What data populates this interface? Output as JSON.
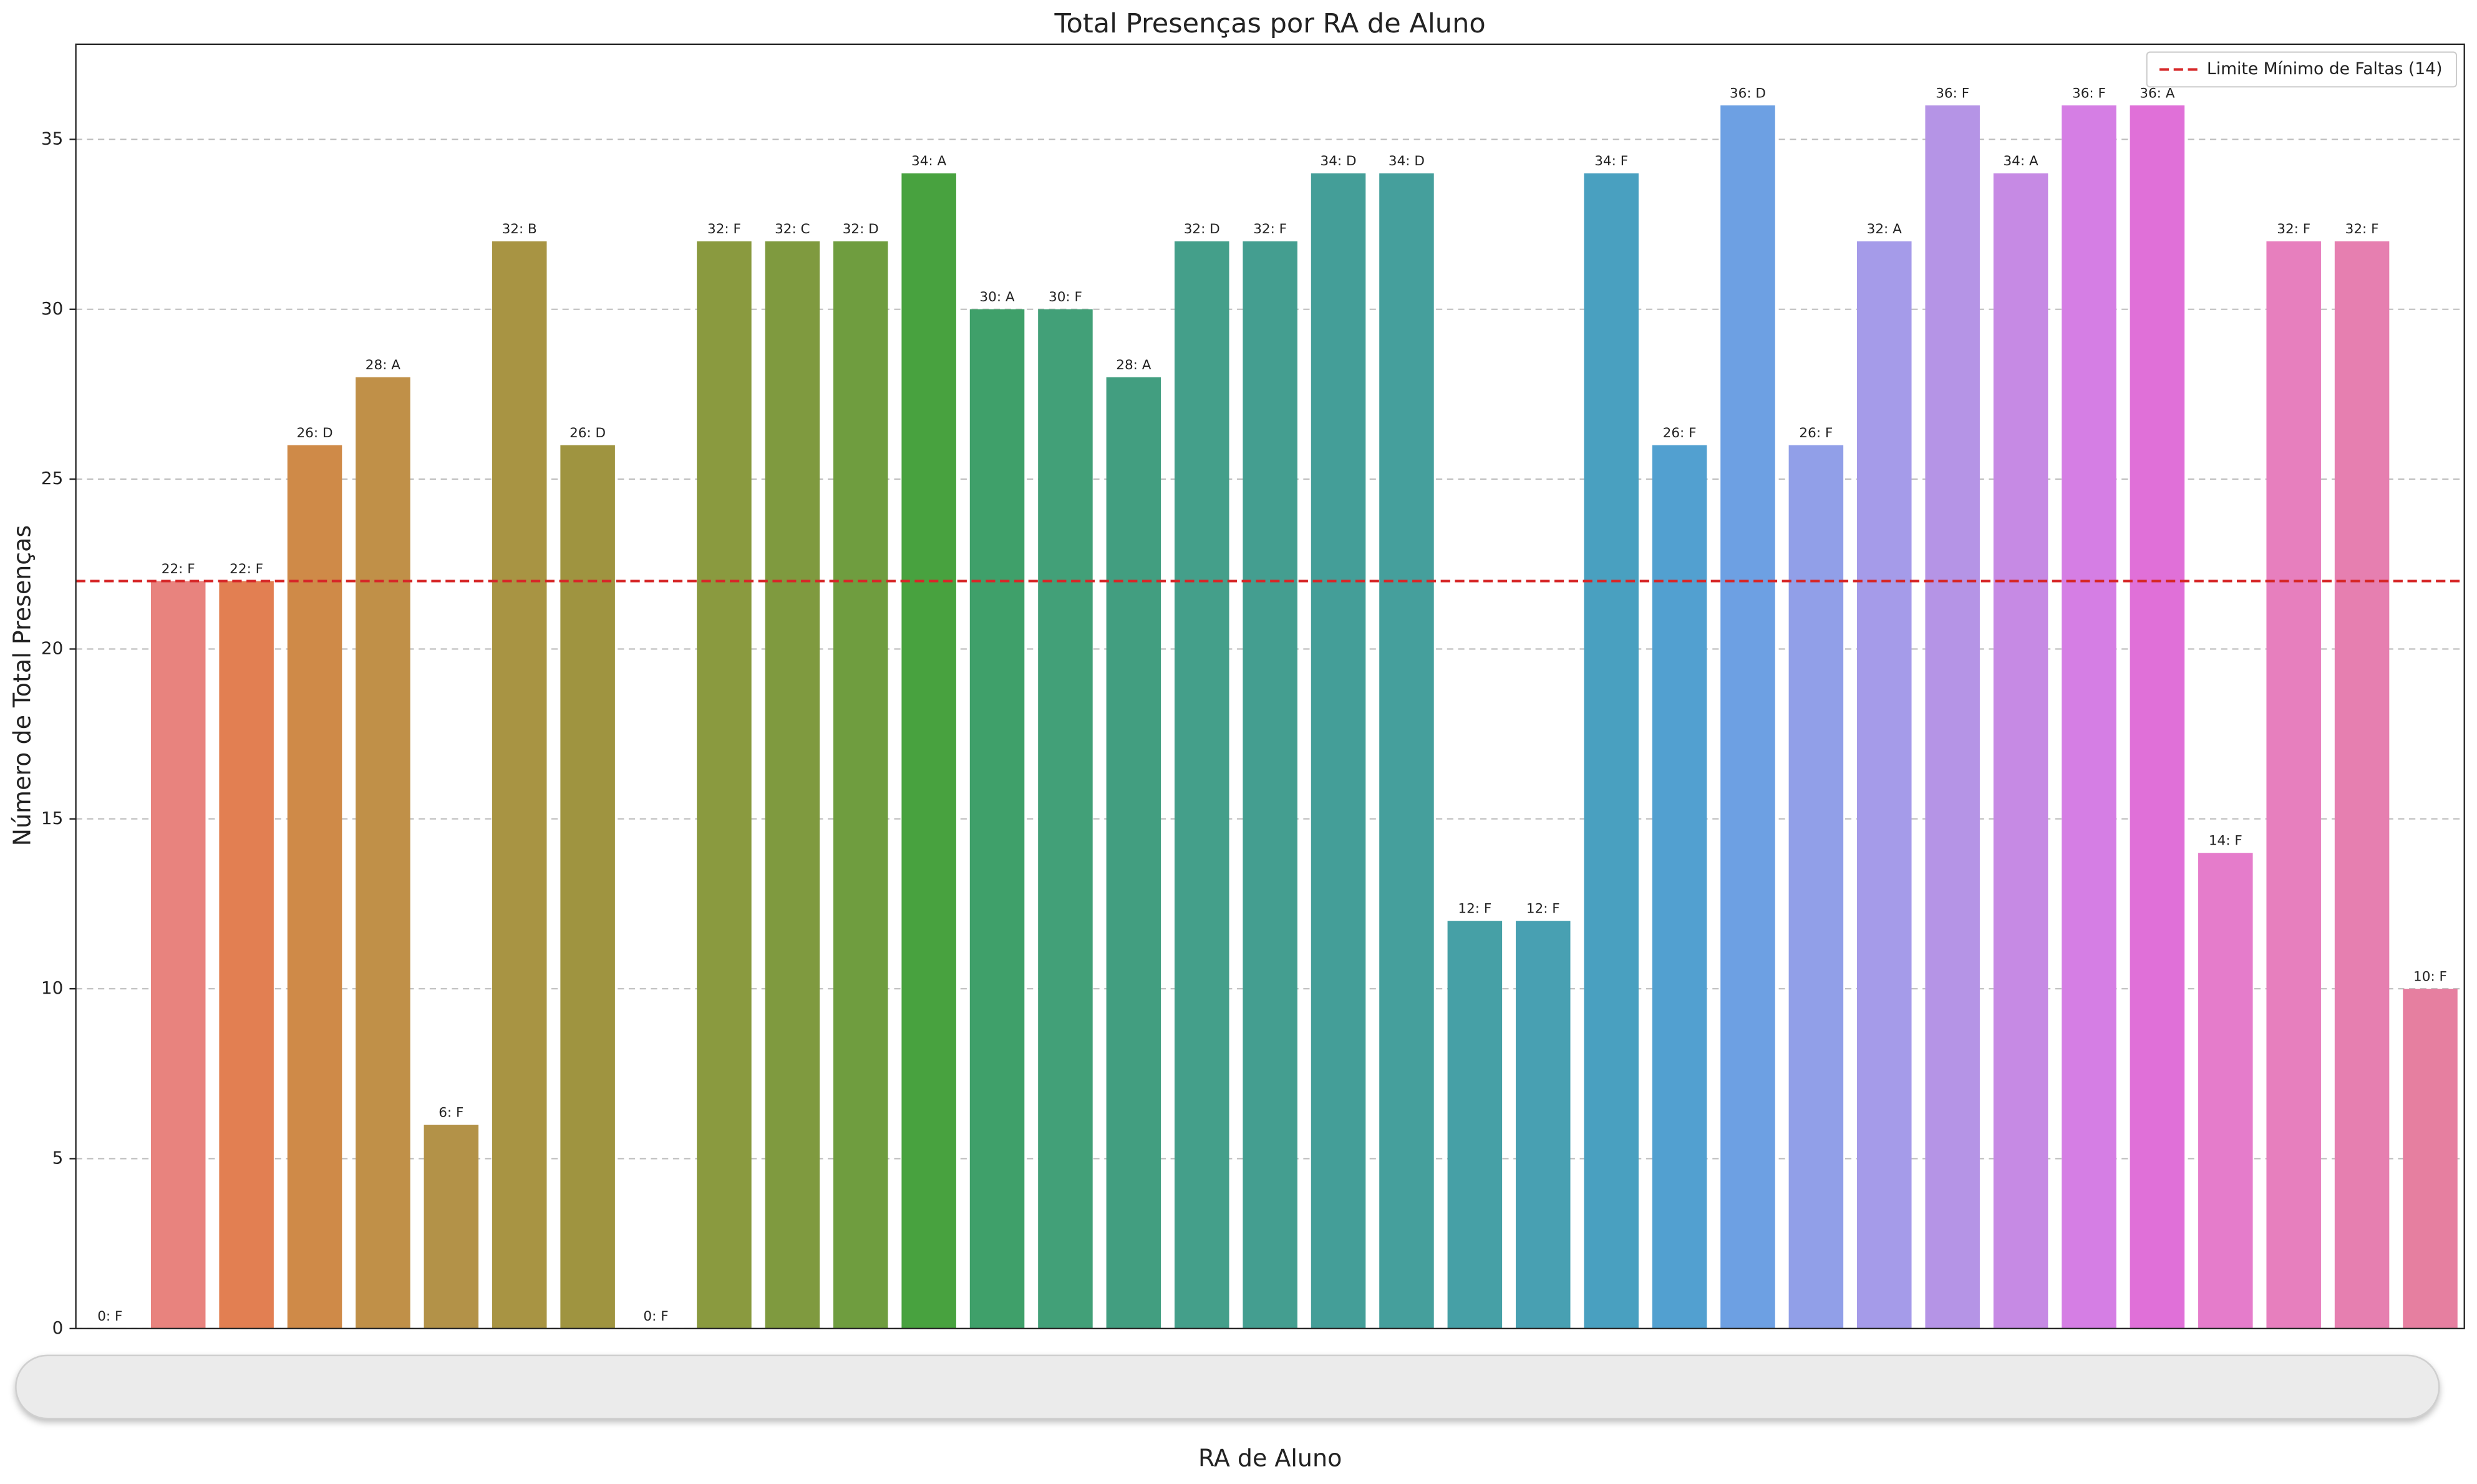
{
  "chart_data": {
    "type": "bar",
    "title": "Total Presenças por RA de Aluno",
    "x_label": "RA de Aluno",
    "y_label": "Número de Total Presenças",
    "categories": [
      null,
      null,
      null,
      null,
      null,
      null,
      null,
      null,
      null,
      null,
      null,
      null,
      null,
      null,
      null,
      null,
      null,
      null,
      null,
      null,
      null,
      null,
      null,
      null,
      null,
      null,
      null,
      null,
      null,
      null,
      null,
      null,
      null,
      null,
      null
    ],
    "values": [
      0,
      22,
      22,
      26,
      28,
      6,
      32,
      26,
      0,
      32,
      32,
      32,
      34,
      30,
      30,
      28,
      32,
      32,
      34,
      34,
      12,
      12,
      34,
      26,
      36,
      26,
      32,
      36,
      34,
      36,
      36,
      14,
      32,
      32,
      10
    ],
    "value_labels": [
      "0: F",
      "22: F",
      "22: F",
      "26: D",
      "28: A",
      "6: F",
      "32: B",
      "26: D",
      "0: F",
      "32: F",
      "32: C",
      "32: D",
      "34: A",
      "30: A",
      "30: F",
      "28: A",
      "32: D",
      "32: F",
      "34: D",
      "34: D",
      "12: F",
      "12: F",
      "34: F",
      "26: F",
      "36: D",
      "26: F",
      "32: A",
      "36: F",
      "34: A",
      "36: F",
      "36: A",
      "14: F",
      "32: F",
      "32: F",
      "10: F"
    ],
    "colors": [
      "#f77189",
      "#e8837e",
      "#e27f52",
      "#cf8a48",
      "#c09048",
      "#b39248",
      "#a89443",
      "#9f9440",
      "#969a3f",
      "#8a9a3f",
      "#7f9a3f",
      "#6f9d3f",
      "#48a23f",
      "#3fa06a",
      "#42a078",
      "#429e80",
      "#449f8a",
      "#449e90",
      "#449e98",
      "#459f9c",
      "#46a0a6",
      "#48a0b2",
      "#49a0c0",
      "#52a0d0",
      "#6da0e3",
      "#919fe8",
      "#a59be9",
      "#b594e6",
      "#c68ae4",
      "#d57ee4",
      "#e070d8",
      "#e57ccb",
      "#e77fbe",
      "#e67fb0",
      "#e67fa0"
    ],
    "reference_line": {
      "value": 22,
      "label": "Limite Mínimo de Faltas (14)",
      "color": "#d62728"
    },
    "ylim": [
      0,
      37.8
    ],
    "yticks": [
      0,
      5,
      10,
      15,
      20,
      25,
      30,
      35
    ],
    "grid": true,
    "legend": "upper right"
  }
}
